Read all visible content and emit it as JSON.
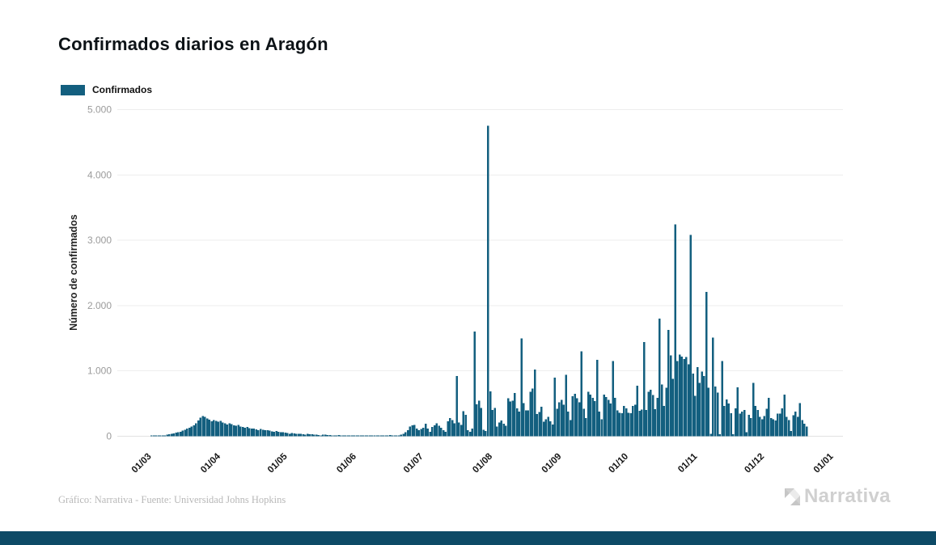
{
  "title": "Confirmados diarios en Aragón",
  "legend": {
    "label": "Confirmados",
    "swatch_color": "#135F7F"
  },
  "footer": {
    "credit": "Gráfico: Narrativa - Fuente: Universidad Johns Hopkins"
  },
  "logo": {
    "text": "Narrativa"
  },
  "colors": {
    "bar": "#135F7F",
    "grid": "#EEEEEE",
    "baseline": "#E2E2E2",
    "y_tick": "#9B9B9B",
    "x_tick": "#161616",
    "title": "#0D1317",
    "footer_text": "#B8B8B8",
    "logo_text": "#D0D0D0",
    "logo_mark_dark": "#C6C6C6",
    "logo_mark_light": "#DBDBDB",
    "bottom_bar": "#0D4A66"
  },
  "chart_data": {
    "type": "bar",
    "title": "Confirmados diarios en Aragón",
    "series_name": "Confirmados",
    "xlabel": "",
    "ylabel": "Número de confirmados",
    "ylim": [
      0,
      5000
    ],
    "grid": true,
    "legend_position": "top-left",
    "y_tick_labels": [
      "0",
      "1.000",
      "2.000",
      "3.000",
      "4.000",
      "5.000"
    ],
    "x_tick_labels": [
      "01/03",
      "01/04",
      "01/05",
      "01/06",
      "01/07",
      "01/08",
      "01/09",
      "01/10",
      "01/11",
      "01/12",
      "01/01"
    ],
    "x_tick_day_offsets": [
      0,
      31,
      61,
      92,
      122,
      153,
      184,
      214,
      245,
      275,
      306
    ],
    "x_start_label": "01/03",
    "frequency": "daily",
    "values": [
      0,
      2,
      3,
      5,
      8,
      10,
      12,
      15,
      22,
      30,
      38,
      45,
      55,
      60,
      70,
      85,
      100,
      115,
      130,
      150,
      170,
      195,
      240,
      285,
      310,
      295,
      270,
      255,
      230,
      250,
      235,
      220,
      235,
      210,
      195,
      180,
      200,
      185,
      170,
      160,
      175,
      150,
      140,
      130,
      145,
      125,
      115,
      120,
      105,
      95,
      110,
      100,
      90,
      95,
      85,
      75,
      70,
      80,
      70,
      65,
      60,
      55,
      50,
      40,
      52,
      45,
      40,
      35,
      38,
      30,
      25,
      35,
      30,
      28,
      25,
      22,
      20,
      15,
      25,
      22,
      20,
      18,
      15,
      12,
      10,
      18,
      15,
      14,
      12,
      10,
      8,
      5,
      8,
      10,
      7,
      5,
      8,
      5,
      3,
      10,
      12,
      15,
      10,
      8,
      6,
      5,
      12,
      15,
      18,
      14,
      10,
      12,
      15,
      25,
      40,
      60,
      90,
      150,
      165,
      175,
      120,
      95,
      110,
      130,
      190,
      120,
      70,
      140,
      170,
      200,
      160,
      130,
      90,
      70,
      230,
      280,
      250,
      200,
      925,
      210,
      175,
      385,
      330,
      90,
      70,
      120,
      1600,
      490,
      545,
      435,
      100,
      80,
      4750,
      690,
      405,
      435,
      150,
      210,
      240,
      190,
      160,
      580,
      530,
      545,
      665,
      430,
      380,
      1500,
      505,
      395,
      395,
      680,
      730,
      1020,
      340,
      370,
      450,
      220,
      260,
      300,
      230,
      180,
      900,
      420,
      520,
      560,
      480,
      940,
      380,
      250,
      610,
      650,
      580,
      520,
      1300,
      420,
      280,
      680,
      640,
      590,
      540,
      1170,
      380,
      260,
      640,
      600,
      560,
      500,
      1150,
      590,
      395,
      360,
      355,
      465,
      430,
      360,
      355,
      465,
      480,
      775,
      390,
      410,
      1440,
      405,
      680,
      710,
      630,
      415,
      585,
      1800,
      790,
      465,
      740,
      1630,
      1235,
      880,
      3240,
      1150,
      1250,
      1220,
      1180,
      1210,
      1100,
      3080,
      960,
      620,
      1060,
      815,
      990,
      920,
      2210,
      740,
      40,
      1510,
      760,
      670,
      30,
      1150,
      465,
      565,
      500,
      350,
      30,
      430,
      750,
      345,
      380,
      405,
      60,
      330,
      280,
      815,
      465,
      405,
      300,
      260,
      310,
      420,
      590,
      280,
      260,
      240,
      345,
      345,
      430,
      640,
      300,
      250,
      80,
      320,
      380,
      300,
      505,
      250,
      190,
      150
    ]
  }
}
